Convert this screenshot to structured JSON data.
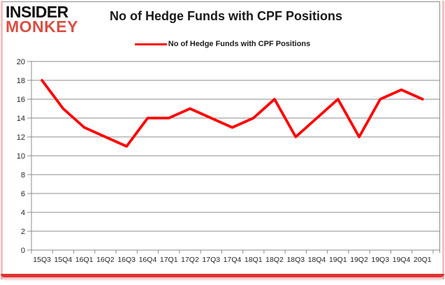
{
  "logo": {
    "line1": "INSIDER",
    "line2": "MONKEY"
  },
  "title": "No of Hedge Funds with CPF Positions",
  "legend": {
    "label": "No of Hedge Funds with CPF Positions"
  },
  "colors": {
    "series": "#fe0000",
    "grid": "#8c8c8c",
    "axis_text": "#262626",
    "logo_red": "#d94f43",
    "frame_pink": "#f2bfbf",
    "frame_red": "#e03232",
    "frame_gray": "#8c8c8c"
  },
  "chart_data": {
    "type": "line",
    "title": "No of Hedge Funds with CPF Positions",
    "categories": [
      "15Q3",
      "15Q4",
      "16Q1",
      "16Q2",
      "16Q3",
      "16Q4",
      "17Q1",
      "17Q2",
      "17Q3",
      "17Q4",
      "18Q1",
      "18Q2",
      "18Q3",
      "18Q4",
      "19Q1",
      "19Q2",
      "19Q3",
      "19Q4",
      "20Q1"
    ],
    "series": [
      {
        "name": "No of Hedge Funds with CPF Positions",
        "values": [
          18,
          15,
          13,
          12,
          11,
          14,
          14,
          15,
          14,
          13,
          14,
          16,
          12,
          14,
          16,
          12,
          16,
          17,
          16
        ]
      }
    ],
    "xlabel": "",
    "ylabel": "",
    "ylim": [
      0,
      20
    ],
    "ytick_step": 2,
    "grid": "horizontal",
    "legend_position": "top-center"
  }
}
